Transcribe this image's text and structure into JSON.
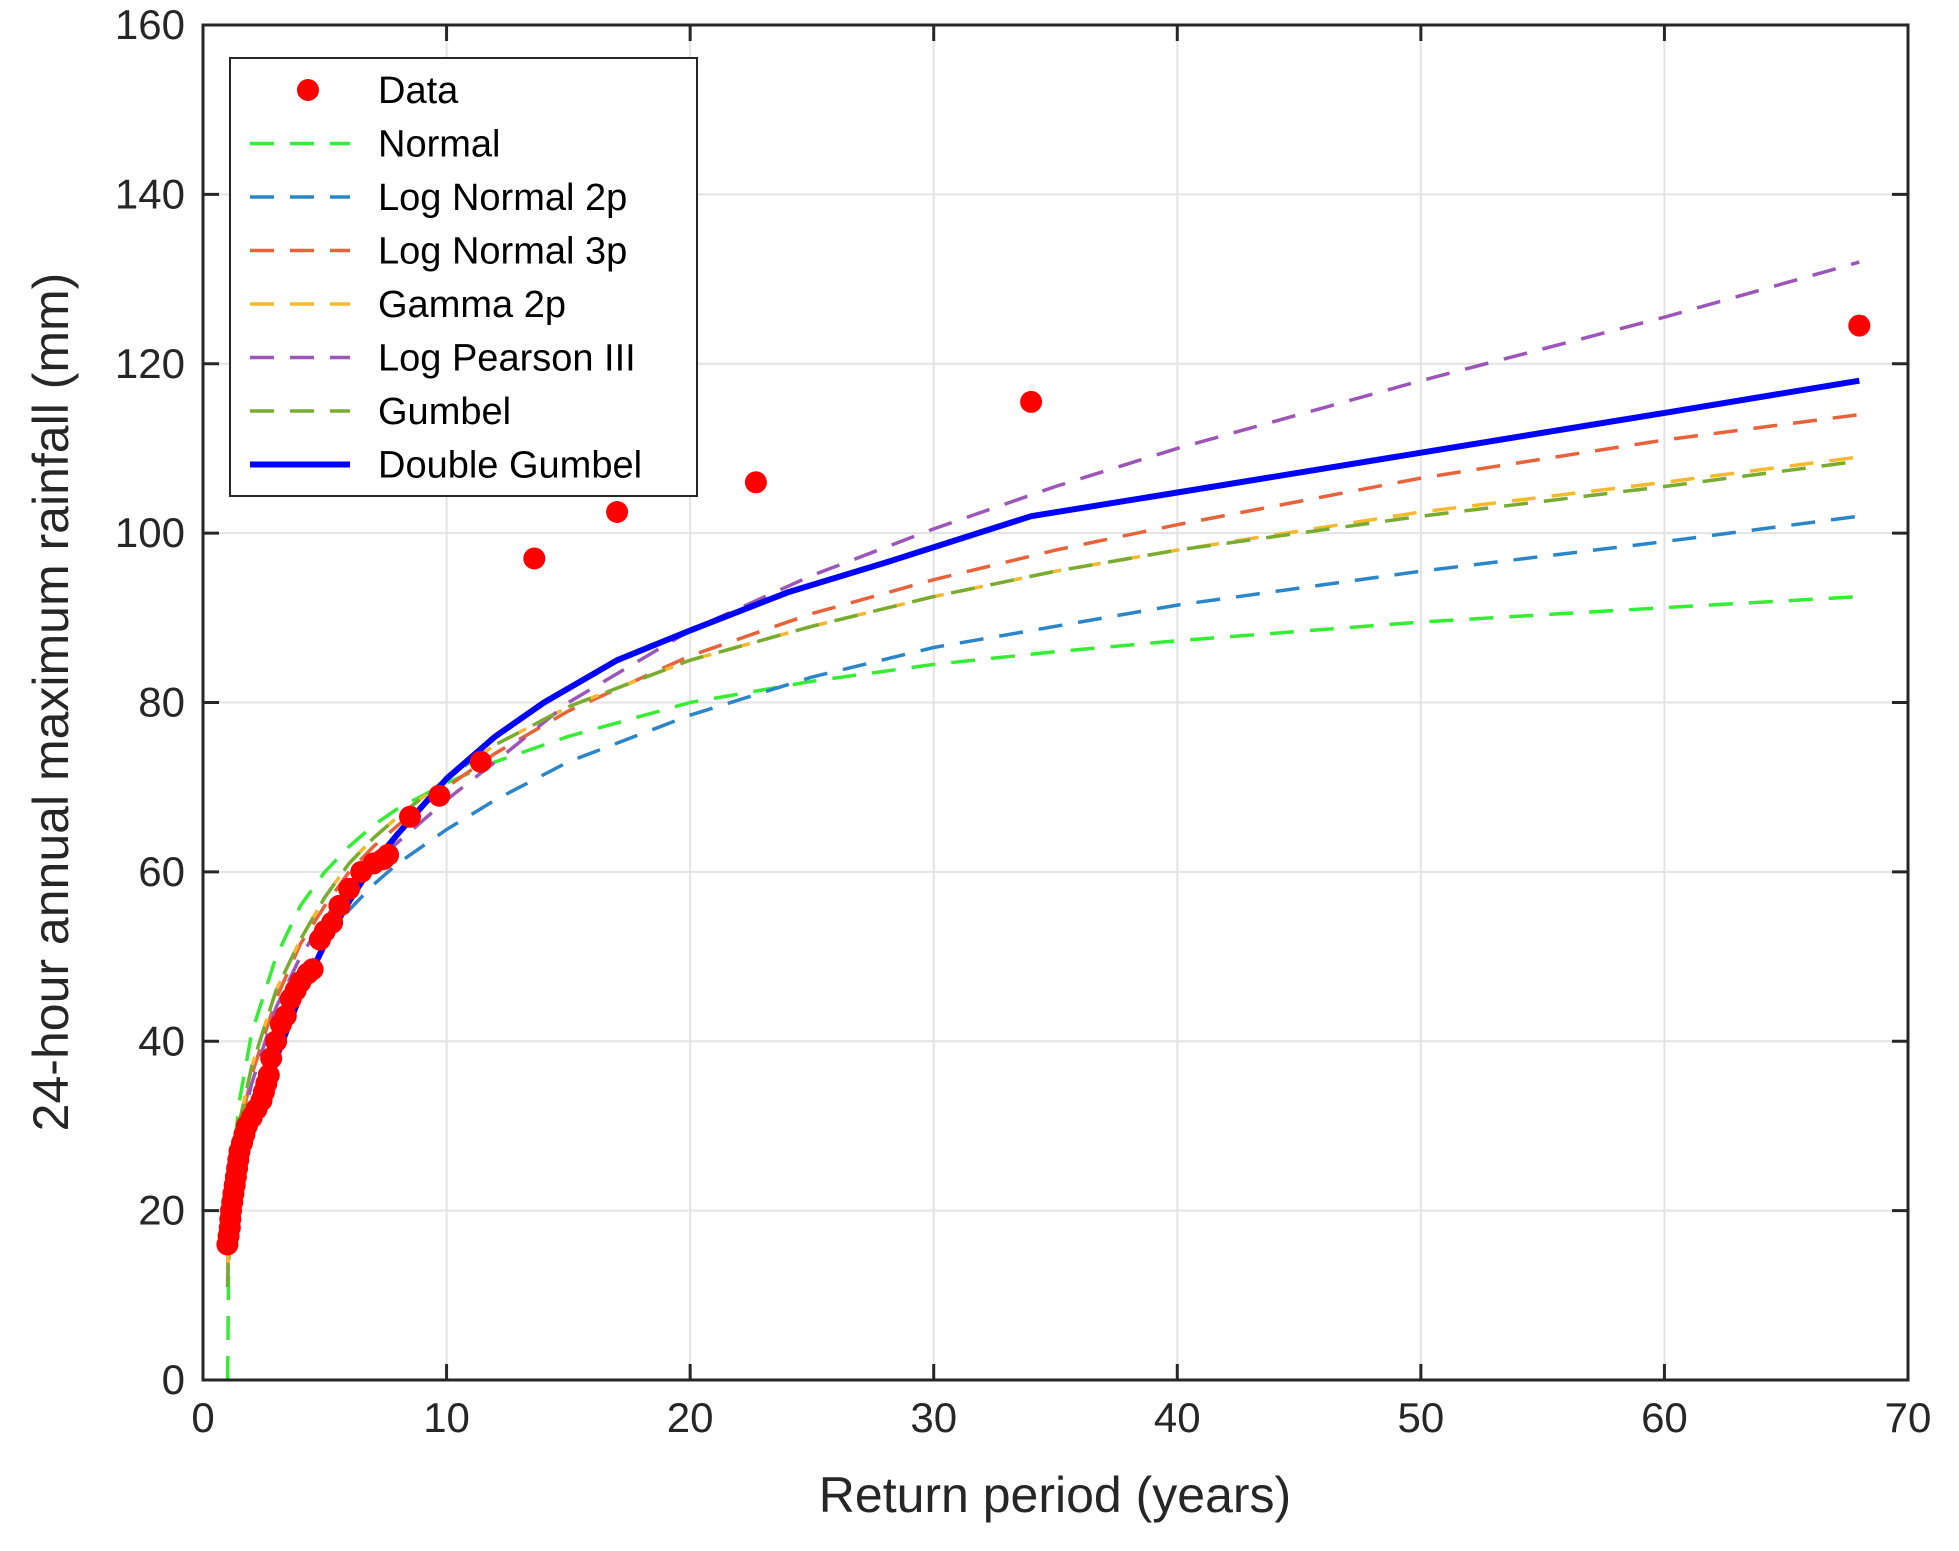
{
  "chart_data": {
    "type": "scatter",
    "title": "",
    "xlabel": "Return period (years)",
    "ylabel": "24-hour annual maximum rainfall (mm)",
    "xlim": [
      0,
      70
    ],
    "ylim": [
      0,
      160
    ],
    "xticks": [
      0,
      10,
      20,
      30,
      40,
      50,
      60,
      70
    ],
    "yticks": [
      0,
      20,
      40,
      60,
      80,
      100,
      120,
      140,
      160
    ],
    "grid": true,
    "legend_position": "top-left",
    "scatter": {
      "name": "Data",
      "color": "#ff0000",
      "points": [
        [
          1.0,
          16
        ],
        [
          1.05,
          17
        ],
        [
          1.1,
          18
        ],
        [
          1.12,
          19
        ],
        [
          1.15,
          20
        ],
        [
          1.2,
          21
        ],
        [
          1.25,
          22
        ],
        [
          1.3,
          23
        ],
        [
          1.35,
          24
        ],
        [
          1.4,
          25
        ],
        [
          1.45,
          26
        ],
        [
          1.5,
          27
        ],
        [
          1.6,
          28
        ],
        [
          1.7,
          29
        ],
        [
          1.8,
          30
        ],
        [
          2.0,
          31
        ],
        [
          2.2,
          32
        ],
        [
          2.4,
          33
        ],
        [
          2.5,
          34
        ],
        [
          2.6,
          35
        ],
        [
          2.7,
          36
        ],
        [
          2.8,
          38
        ],
        [
          3.0,
          40
        ],
        [
          3.2,
          42
        ],
        [
          3.4,
          43
        ],
        [
          3.6,
          45
        ],
        [
          3.8,
          46
        ],
        [
          4.0,
          47
        ],
        [
          4.3,
          48
        ],
        [
          4.5,
          48.5
        ],
        [
          4.8,
          52
        ],
        [
          5.0,
          53
        ],
        [
          5.3,
          54
        ],
        [
          5.6,
          56
        ],
        [
          6.0,
          58
        ],
        [
          6.5,
          60
        ],
        [
          7.0,
          61
        ],
        [
          7.4,
          61.5
        ],
        [
          7.6,
          62
        ],
        [
          8.5,
          66.5
        ],
        [
          9.7,
          69
        ],
        [
          11.4,
          73
        ],
        [
          13.6,
          97
        ],
        [
          17.0,
          102.5
        ],
        [
          22.7,
          106
        ],
        [
          34.0,
          115.5
        ],
        [
          68.0,
          124.5
        ]
      ]
    },
    "series": [
      {
        "name": "Normal",
        "color": "#33ee33",
        "dash": "dashed",
        "x": [
          1.01,
          1.05,
          1.2,
          1.5,
          2,
          3,
          4,
          5,
          6,
          7,
          8,
          10,
          12,
          15,
          20,
          25,
          30,
          35,
          40,
          50,
          60,
          68
        ],
        "y": [
          0,
          13,
          25,
          33,
          41,
          50,
          56,
          60,
          63,
          65.5,
          67.5,
          70.5,
          73,
          76,
          80,
          82.5,
          84.5,
          86,
          87.3,
          89.5,
          91.2,
          92.5
        ]
      },
      {
        "name": "Log Normal 2p",
        "color": "#2a86c8",
        "dash": "dashed",
        "x": [
          1.01,
          1.05,
          1.2,
          1.5,
          2,
          3,
          4,
          5,
          6,
          7,
          8,
          10,
          12,
          15,
          20,
          25,
          30,
          35,
          40,
          50,
          60,
          68
        ],
        "y": [
          11,
          15,
          21,
          27,
          33,
          41,
          47,
          52,
          55.5,
          58.5,
          61,
          65,
          68.5,
          73,
          78.5,
          83,
          86.5,
          89,
          91.5,
          95.5,
          99,
          102
        ]
      },
      {
        "name": "Log Normal 3p",
        "color": "#e8623a",
        "dash": "dashed",
        "x": [
          1.01,
          1.05,
          1.2,
          1.5,
          2,
          3,
          4,
          5,
          6,
          7,
          8,
          10,
          12,
          15,
          20,
          25,
          30,
          35,
          40,
          50,
          60,
          68
        ],
        "y": [
          13,
          17,
          23,
          29.5,
          36,
          45,
          51.5,
          56,
          60,
          63,
          65.5,
          70,
          74,
          79,
          85.5,
          90.5,
          94.5,
          98,
          101,
          106.5,
          111,
          114
        ]
      },
      {
        "name": "Gamma 2p",
        "color": "#f5b82e",
        "dash": "dashed",
        "x": [
          1.01,
          1.05,
          1.2,
          1.5,
          2,
          3,
          4,
          5,
          6,
          7,
          8,
          10,
          12,
          15,
          20,
          25,
          30,
          35,
          40,
          50,
          60,
          68
        ],
        "y": [
          12,
          17,
          23.5,
          30.5,
          37,
          46,
          52,
          57,
          61,
          64,
          66.5,
          71,
          75,
          79.5,
          85,
          89,
          92.5,
          95.5,
          98,
          102.5,
          106,
          109
        ]
      },
      {
        "name": "Log Pearson III",
        "color": "#9c55b8",
        "dash": "dashed",
        "x": [
          1.01,
          1.05,
          1.2,
          1.5,
          2,
          3,
          4,
          5,
          6,
          7,
          8,
          10,
          12,
          15,
          20,
          25,
          30,
          35,
          40,
          50,
          60,
          68
        ],
        "y": [
          15,
          18,
          23,
          29,
          35,
          44,
          50,
          54.5,
          58,
          61,
          63.5,
          68.5,
          73,
          80,
          88.5,
          95,
          100.5,
          105.5,
          110,
          118,
          125.5,
          132
        ]
      },
      {
        "name": "Gumbel",
        "color": "#77ac30",
        "dash": "dashed",
        "x": [
          1.01,
          1.05,
          1.2,
          1.5,
          2,
          3,
          4,
          5,
          6,
          7,
          8,
          10,
          12,
          15,
          20,
          25,
          30,
          35,
          40,
          50,
          60,
          68
        ],
        "y": [
          11,
          17,
          23.5,
          30.5,
          37,
          46,
          52,
          57,
          61,
          64,
          66.5,
          71,
          75,
          79.5,
          85,
          89,
          92.5,
          95.5,
          98,
          102,
          105.5,
          108.5
        ]
      },
      {
        "name": "Double Gumbel",
        "color": "#0000ff",
        "dash": "solid",
        "x": [
          1.0,
          1.2,
          1.5,
          2,
          3,
          4,
          5,
          6,
          7,
          8,
          10,
          12,
          14,
          17,
          20,
          24,
          28,
          34,
          40,
          50,
          60,
          68
        ],
        "y": [
          15,
          20,
          25,
          30,
          38,
          45.5,
          51.5,
          56.5,
          61,
          64.5,
          71,
          76,
          80,
          85,
          88.5,
          93,
          96.5,
          102,
          104.8,
          109.5,
          114.2,
          118
        ]
      }
    ]
  }
}
